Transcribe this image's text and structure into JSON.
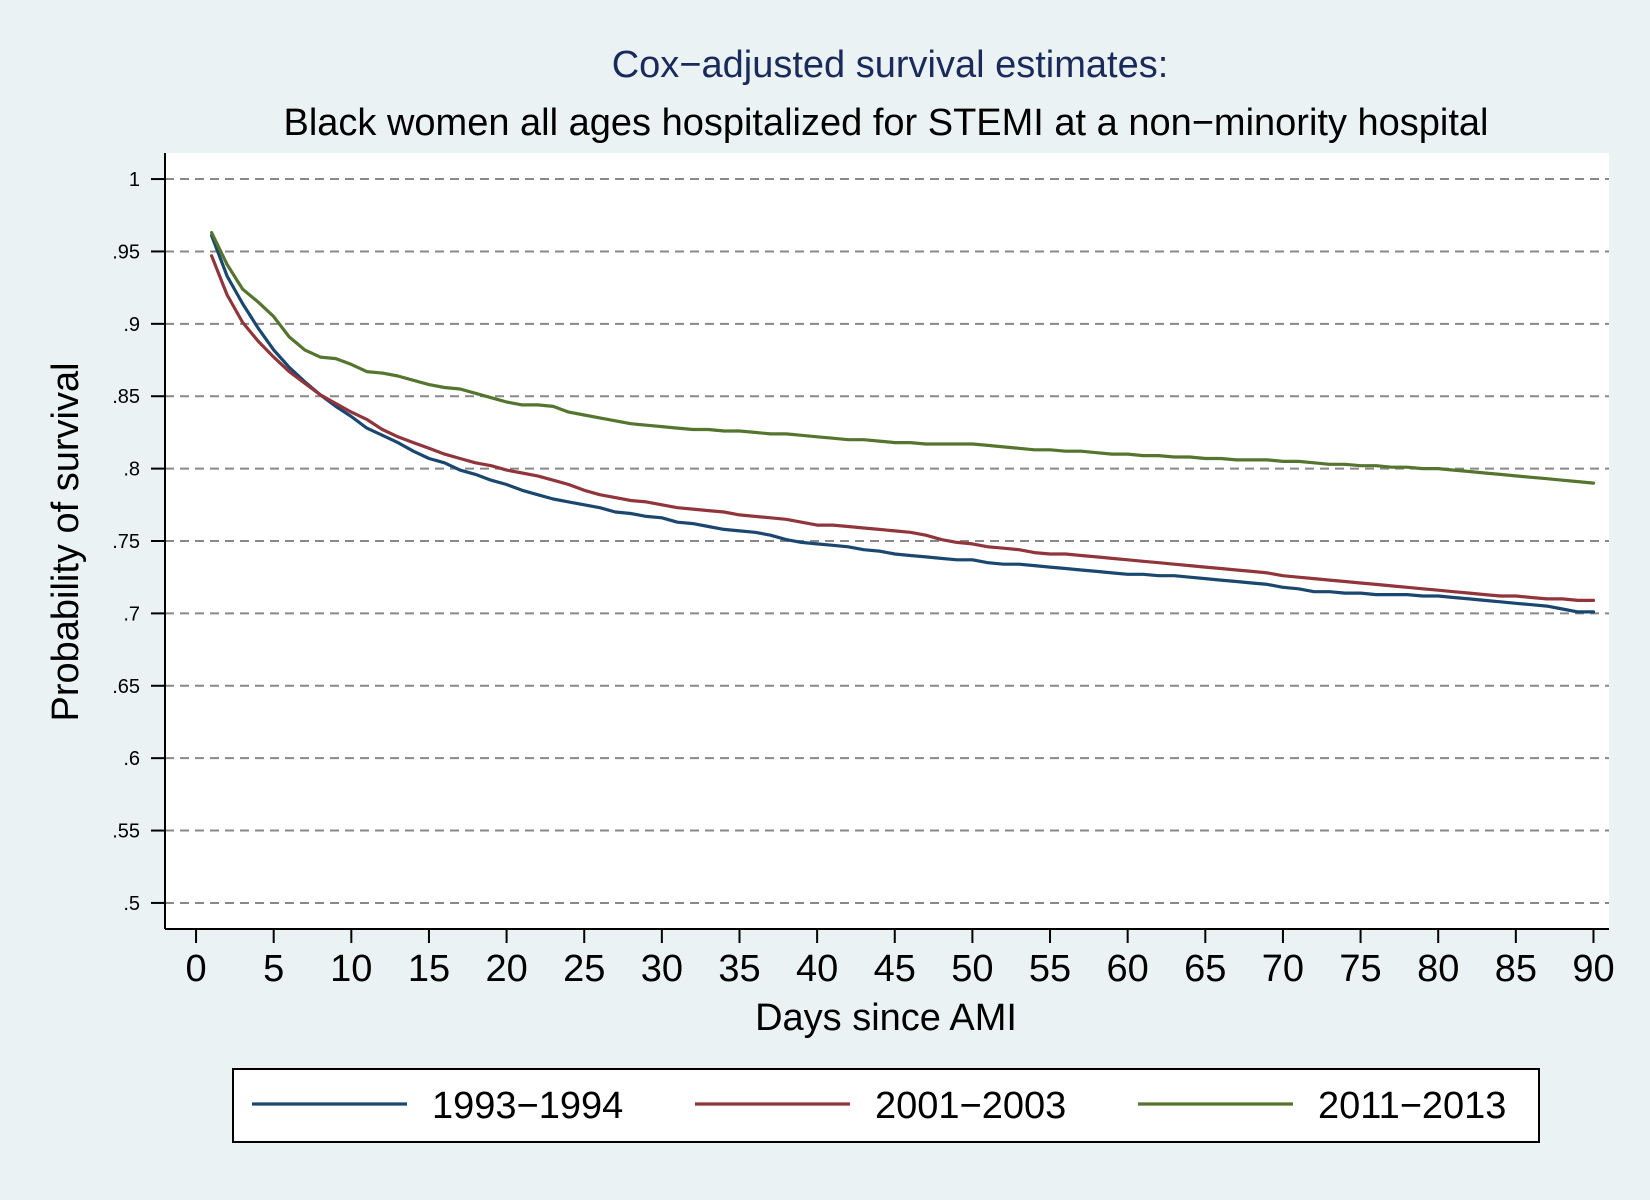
{
  "chart_data": {
    "type": "line",
    "title": "Cox−adjusted survival estimates:",
    "subtitle": "Black women all ages hospitalized for STEMI at a non−minority hospital",
    "xlabel": "Days since AMI",
    "ylabel": "Probability of survival",
    "xlim": [
      -2,
      91
    ],
    "ylim": [
      0.482,
      1.018
    ],
    "x_ticks": [
      0,
      5,
      10,
      15,
      20,
      25,
      30,
      35,
      40,
      45,
      50,
      55,
      60,
      65,
      70,
      75,
      80,
      85,
      90
    ],
    "x_tick_labels": [
      "0",
      "5",
      "10",
      "15",
      "20",
      "25",
      "30",
      "35",
      "40",
      "45",
      "50",
      "55",
      "60",
      "65",
      "70",
      "75",
      "80",
      "85",
      "90"
    ],
    "y_ticks": [
      0.5,
      0.55,
      0.6,
      0.65,
      0.7,
      0.75,
      0.8,
      0.85,
      0.9,
      0.95,
      1
    ],
    "y_tick_labels": [
      ".5",
      ".55",
      ".6",
      ".65",
      ".7",
      ".75",
      ".8",
      ".85",
      ".9",
      ".95",
      "1"
    ],
    "grid": true,
    "legend_position": "bottom",
    "series": [
      {
        "name": "1993−1994",
        "color": "#1a476f",
        "x": [
          1,
          2,
          3,
          4,
          5,
          6,
          7,
          8,
          9,
          10,
          11,
          12,
          13,
          14,
          15,
          16,
          17,
          18,
          19,
          20,
          21,
          22,
          23,
          24,
          25,
          26,
          27,
          28,
          29,
          30,
          31,
          32,
          33,
          34,
          35,
          36,
          37,
          38,
          39,
          40,
          41,
          42,
          43,
          44,
          45,
          46,
          47,
          48,
          49,
          50,
          51,
          52,
          53,
          54,
          55,
          56,
          57,
          58,
          59,
          60,
          61,
          62,
          63,
          64,
          65,
          66,
          67,
          68,
          69,
          70,
          71,
          72,
          73,
          74,
          75,
          76,
          77,
          78,
          79,
          80,
          81,
          82,
          83,
          84,
          85,
          86,
          87,
          88,
          89,
          90
        ],
        "values": [
          0.961,
          0.933,
          0.914,
          0.897,
          0.882,
          0.87,
          0.86,
          0.851,
          0.843,
          0.836,
          0.828,
          0.823,
          0.818,
          0.812,
          0.807,
          0.804,
          0.799,
          0.796,
          0.792,
          0.789,
          0.785,
          0.782,
          0.779,
          0.777,
          0.775,
          0.773,
          0.77,
          0.769,
          0.767,
          0.766,
          0.763,
          0.762,
          0.76,
          0.758,
          0.757,
          0.756,
          0.754,
          0.751,
          0.749,
          0.748,
          0.747,
          0.746,
          0.744,
          0.743,
          0.741,
          0.74,
          0.739,
          0.738,
          0.737,
          0.737,
          0.735,
          0.734,
          0.734,
          0.733,
          0.732,
          0.731,
          0.73,
          0.729,
          0.728,
          0.727,
          0.727,
          0.726,
          0.726,
          0.725,
          0.724,
          0.723,
          0.722,
          0.721,
          0.72,
          0.718,
          0.717,
          0.715,
          0.715,
          0.714,
          0.714,
          0.713,
          0.713,
          0.713,
          0.712,
          0.712,
          0.711,
          0.71,
          0.709,
          0.708,
          0.707,
          0.706,
          0.705,
          0.703,
          0.701,
          0.701
        ]
      },
      {
        "name": "2001−2003",
        "color": "#90353b",
        "x": [
          1,
          2,
          3,
          4,
          5,
          6,
          7,
          8,
          9,
          10,
          11,
          12,
          13,
          14,
          15,
          16,
          17,
          18,
          19,
          20,
          21,
          22,
          23,
          24,
          25,
          26,
          27,
          28,
          29,
          30,
          31,
          32,
          33,
          34,
          35,
          36,
          37,
          38,
          39,
          40,
          41,
          42,
          43,
          44,
          45,
          46,
          47,
          48,
          49,
          50,
          51,
          52,
          53,
          54,
          55,
          56,
          57,
          58,
          59,
          60,
          61,
          62,
          63,
          64,
          65,
          66,
          67,
          68,
          69,
          70,
          71,
          72,
          73,
          74,
          75,
          76,
          77,
          78,
          79,
          80,
          81,
          82,
          83,
          84,
          85,
          86,
          87,
          88,
          89,
          90
        ],
        "values": [
          0.947,
          0.92,
          0.901,
          0.888,
          0.877,
          0.867,
          0.859,
          0.851,
          0.845,
          0.839,
          0.834,
          0.827,
          0.822,
          0.818,
          0.814,
          0.81,
          0.807,
          0.804,
          0.802,
          0.799,
          0.797,
          0.795,
          0.792,
          0.789,
          0.785,
          0.782,
          0.78,
          0.778,
          0.777,
          0.775,
          0.773,
          0.772,
          0.771,
          0.77,
          0.768,
          0.767,
          0.766,
          0.765,
          0.763,
          0.761,
          0.761,
          0.76,
          0.759,
          0.758,
          0.757,
          0.756,
          0.754,
          0.751,
          0.749,
          0.748,
          0.746,
          0.745,
          0.744,
          0.742,
          0.741,
          0.741,
          0.74,
          0.739,
          0.738,
          0.737,
          0.736,
          0.735,
          0.734,
          0.733,
          0.732,
          0.731,
          0.73,
          0.729,
          0.728,
          0.726,
          0.725,
          0.724,
          0.723,
          0.722,
          0.721,
          0.72,
          0.719,
          0.718,
          0.717,
          0.716,
          0.715,
          0.714,
          0.713,
          0.712,
          0.712,
          0.711,
          0.71,
          0.71,
          0.709,
          0.709
        ]
      },
      {
        "name": "2011−2013",
        "color": "#55752f",
        "x": [
          1,
          2,
          3,
          4,
          5,
          6,
          7,
          8,
          9,
          10,
          11,
          12,
          13,
          14,
          15,
          16,
          17,
          18,
          19,
          20,
          21,
          22,
          23,
          24,
          25,
          26,
          27,
          28,
          29,
          30,
          31,
          32,
          33,
          34,
          35,
          36,
          37,
          38,
          39,
          40,
          41,
          42,
          43,
          44,
          45,
          46,
          47,
          48,
          49,
          50,
          51,
          52,
          53,
          54,
          55,
          56,
          57,
          58,
          59,
          60,
          61,
          62,
          63,
          64,
          65,
          66,
          67,
          68,
          69,
          70,
          71,
          72,
          73,
          74,
          75,
          76,
          77,
          78,
          79,
          80,
          81,
          82,
          83,
          84,
          85,
          86,
          87,
          88,
          89,
          90
        ],
        "values": [
          0.963,
          0.941,
          0.924,
          0.915,
          0.905,
          0.891,
          0.882,
          0.877,
          0.876,
          0.872,
          0.867,
          0.866,
          0.864,
          0.861,
          0.858,
          0.856,
          0.855,
          0.852,
          0.849,
          0.846,
          0.844,
          0.844,
          0.843,
          0.839,
          0.837,
          0.835,
          0.833,
          0.831,
          0.83,
          0.829,
          0.828,
          0.827,
          0.827,
          0.826,
          0.826,
          0.825,
          0.824,
          0.824,
          0.823,
          0.822,
          0.821,
          0.82,
          0.82,
          0.819,
          0.818,
          0.818,
          0.817,
          0.817,
          0.817,
          0.817,
          0.816,
          0.815,
          0.814,
          0.813,
          0.813,
          0.812,
          0.812,
          0.811,
          0.81,
          0.81,
          0.809,
          0.809,
          0.808,
          0.808,
          0.807,
          0.807,
          0.806,
          0.806,
          0.806,
          0.805,
          0.805,
          0.804,
          0.803,
          0.803,
          0.802,
          0.802,
          0.801,
          0.801,
          0.8,
          0.8,
          0.799,
          0.798,
          0.797,
          0.796,
          0.795,
          0.794,
          0.793,
          0.792,
          0.791,
          0.79
        ]
      }
    ]
  }
}
